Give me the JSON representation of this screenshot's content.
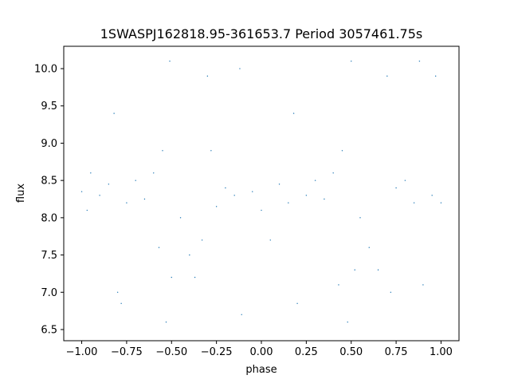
{
  "chart_data": {
    "type": "scatter",
    "title": "1SWASPJ162818.95-361653.7 Period 3057461.75s",
    "xlabel": "phase",
    "ylabel": "flux",
    "xlim": [
      -1.1,
      1.1
    ],
    "ylim": [
      6.35,
      10.3
    ],
    "xticks": [
      -1.0,
      -0.75,
      -0.5,
      -0.25,
      0.0,
      0.25,
      0.5,
      0.75,
      1.0
    ],
    "xtick_labels": [
      "−1.00",
      "−0.75",
      "−0.50",
      "−0.25",
      "0.00",
      "0.25",
      "0.50",
      "0.75",
      "1.00"
    ],
    "yticks": [
      6.5,
      7.0,
      7.5,
      8.0,
      8.5,
      9.0,
      9.5,
      10.0
    ],
    "ytick_labels": [
      "6.5",
      "7.0",
      "7.5",
      "8.0",
      "8.5",
      "9.0",
      "9.5",
      "10.0"
    ],
    "grid": false,
    "legend": "none",
    "marker_color": "#1f77b4",
    "series": [
      {
        "values": [
          {
            "x": -1.0,
            "y": 8.35
          },
          {
            "x": -0.97,
            "y": 8.1
          },
          {
            "x": -0.95,
            "y": 8.6
          },
          {
            "x": -0.9,
            "y": 8.3
          },
          {
            "x": -0.85,
            "y": 8.45
          },
          {
            "x": -0.82,
            "y": 9.4
          },
          {
            "x": -0.8,
            "y": 7.0
          },
          {
            "x": -0.78,
            "y": 6.85
          },
          {
            "x": -0.75,
            "y": 8.2
          },
          {
            "x": -0.7,
            "y": 8.5
          },
          {
            "x": -0.65,
            "y": 8.25
          },
          {
            "x": -0.6,
            "y": 8.6
          },
          {
            "x": -0.57,
            "y": 7.6
          },
          {
            "x": -0.55,
            "y": 8.9
          },
          {
            "x": -0.53,
            "y": 6.6
          },
          {
            "x": -0.51,
            "y": 10.1
          },
          {
            "x": -0.5,
            "y": 7.2
          },
          {
            "x": -0.45,
            "y": 8.0
          },
          {
            "x": -0.4,
            "y": 7.5
          },
          {
            "x": -0.37,
            "y": 7.2
          },
          {
            "x": -0.33,
            "y": 7.7
          },
          {
            "x": -0.3,
            "y": 9.9
          },
          {
            "x": -0.28,
            "y": 8.9
          },
          {
            "x": -0.25,
            "y": 8.15
          },
          {
            "x": -0.2,
            "y": 8.4
          },
          {
            "x": -0.15,
            "y": 8.3
          },
          {
            "x": -0.12,
            "y": 10.0
          },
          {
            "x": -0.11,
            "y": 6.7
          },
          {
            "x": -0.05,
            "y": 8.35
          },
          {
            "x": 0.0,
            "y": 8.1
          },
          {
            "x": 0.05,
            "y": 7.7
          },
          {
            "x": 0.1,
            "y": 8.45
          },
          {
            "x": 0.15,
            "y": 8.2
          },
          {
            "x": 0.18,
            "y": 9.4
          },
          {
            "x": 0.2,
            "y": 6.85
          },
          {
            "x": 0.25,
            "y": 8.3
          },
          {
            "x": 0.3,
            "y": 8.5
          },
          {
            "x": 0.35,
            "y": 8.25
          },
          {
            "x": 0.4,
            "y": 8.6
          },
          {
            "x": 0.43,
            "y": 7.1
          },
          {
            "x": 0.45,
            "y": 8.9
          },
          {
            "x": 0.48,
            "y": 6.6
          },
          {
            "x": 0.5,
            "y": 10.1
          },
          {
            "x": 0.52,
            "y": 7.3
          },
          {
            "x": 0.55,
            "y": 8.0
          },
          {
            "x": 0.6,
            "y": 7.6
          },
          {
            "x": 0.65,
            "y": 7.3
          },
          {
            "x": 0.7,
            "y": 9.9
          },
          {
            "x": 0.72,
            "y": 7.0
          },
          {
            "x": 0.75,
            "y": 8.4
          },
          {
            "x": 0.8,
            "y": 8.5
          },
          {
            "x": 0.85,
            "y": 8.2
          },
          {
            "x": 0.88,
            "y": 10.1
          },
          {
            "x": 0.9,
            "y": 7.1
          },
          {
            "x": 0.95,
            "y": 8.3
          },
          {
            "x": 0.97,
            "y": 9.9
          },
          {
            "x": 1.0,
            "y": 8.2
          }
        ]
      }
    ]
  }
}
